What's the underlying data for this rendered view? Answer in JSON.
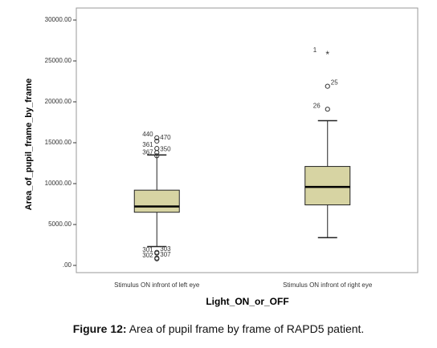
{
  "chart_data": {
    "type": "box",
    "y_label": "Area_of_pupil_frame_by_frame",
    "x_label": "Light_ON_or_OFF",
    "categories": [
      "Stimulus ON infront of left eye",
      "Stimulus ON infront of right eye"
    ],
    "color": "#d7d4a3",
    "ylim": [
      0,
      30000
    ],
    "yticks": [
      {
        "value": 0,
        "label": ".00"
      },
      {
        "value": 5000,
        "label": "5000.00"
      },
      {
        "value": 10000,
        "label": "10000.00"
      },
      {
        "value": 15000,
        "label": "15000.00"
      },
      {
        "value": 20000,
        "label": "20000.00"
      },
      {
        "value": 25000,
        "label": "25000.00"
      },
      {
        "value": 30000,
        "label": "30000.00"
      }
    ],
    "boxes": [
      {
        "min": 2300,
        "q1": 6500,
        "median": 7200,
        "q3": 9200,
        "max": 13500,
        "outliers": [
          {
            "value": 15600,
            "label": "440",
            "marker": "circle"
          },
          {
            "value": 15200,
            "label": "470",
            "marker": "circle"
          },
          {
            "value": 14300,
            "label": "361",
            "marker": "circle"
          },
          {
            "value": 13800,
            "label": "350",
            "marker": "circle"
          },
          {
            "value": 13400,
            "label": "367",
            "marker": "circle"
          },
          {
            "value": 1600,
            "label": "303",
            "marker": "circle"
          },
          {
            "value": 1500,
            "label": "301",
            "marker": "circle"
          },
          {
            "value": 900,
            "label": "307",
            "marker": "circle"
          },
          {
            "value": 800,
            "label": "302",
            "marker": "circle"
          }
        ]
      },
      {
        "min": 3400,
        "q1": 7400,
        "median": 9600,
        "q3": 12100,
        "max": 17700,
        "outliers": [
          {
            "value": 19100,
            "label": "26",
            "marker": "circle"
          },
          {
            "value": 21900,
            "label": "25",
            "marker": "circle"
          },
          {
            "value": 25900,
            "label": "1",
            "marker": "star"
          }
        ]
      }
    ]
  },
  "caption": {
    "bold": "Figure 12:",
    "text": " Area of pupil frame by frame of RAPD5 patient."
  }
}
